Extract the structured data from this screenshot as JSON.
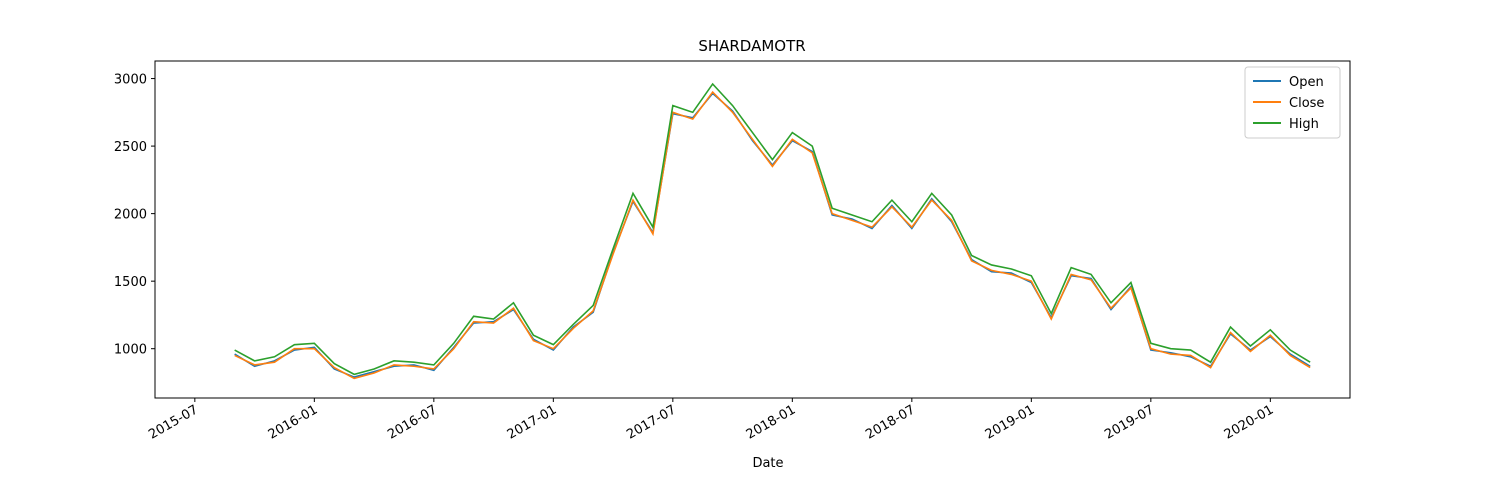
{
  "chart_data": {
    "type": "line",
    "title": "SHARDAMOTR",
    "xlabel": "Date",
    "x": [
      "2015-09",
      "2015-10",
      "2015-11",
      "2015-12",
      "2016-01",
      "2016-02",
      "2016-03",
      "2016-04",
      "2016-05",
      "2016-06",
      "2016-07",
      "2016-08",
      "2016-09",
      "2016-10",
      "2016-11",
      "2016-12",
      "2017-01",
      "2017-02",
      "2017-03",
      "2017-04",
      "2017-05",
      "2017-06",
      "2017-07",
      "2017-08",
      "2017-09",
      "2017-10",
      "2017-11",
      "2017-12",
      "2018-01",
      "2018-02",
      "2018-03",
      "2018-04",
      "2018-05",
      "2018-06",
      "2018-07",
      "2018-08",
      "2018-09",
      "2018-10",
      "2018-11",
      "2018-12",
      "2019-01",
      "2019-02",
      "2019-03",
      "2019-04",
      "2019-05",
      "2019-06",
      "2019-07",
      "2019-08",
      "2019-09",
      "2019-10",
      "2019-11",
      "2019-12",
      "2020-01",
      "2020-02",
      "2020-03"
    ],
    "series": [
      {
        "name": "Open",
        "color": "#1f77b4",
        "values": [
          960,
          870,
          910,
          990,
          1010,
          850,
          790,
          830,
          870,
          880,
          840,
          1010,
          1190,
          1200,
          1290,
          1070,
          990,
          1160,
          1270,
          1710,
          2090,
          1860,
          2740,
          2710,
          2890,
          2760,
          2540,
          2360,
          2540,
          2460,
          1990,
          1960,
          1890,
          2060,
          1890,
          2110,
          1940,
          1660,
          1570,
          1560,
          1490,
          1230,
          1540,
          1520,
          1290,
          1460,
          990,
          970,
          940,
          870,
          1110,
          990,
          1090,
          960,
          870
        ]
      },
      {
        "name": "Close",
        "color": "#ff7f0e",
        "values": [
          950,
          880,
          900,
          1000,
          1000,
          860,
          780,
          820,
          880,
          870,
          850,
          1000,
          1200,
          1190,
          1300,
          1060,
          1000,
          1150,
          1280,
          1700,
          2100,
          1850,
          2750,
          2700,
          2900,
          2750,
          2550,
          2350,
          2550,
          2450,
          2000,
          1950,
          1900,
          2050,
          1900,
          2100,
          1950,
          1650,
          1580,
          1550,
          1500,
          1220,
          1550,
          1510,
          1300,
          1450,
          1000,
          960,
          950,
          860,
          1120,
          980,
          1100,
          950,
          860
        ]
      },
      {
        "name": "High",
        "color": "#2ca02c",
        "values": [
          990,
          910,
          940,
          1030,
          1040,
          890,
          810,
          850,
          910,
          900,
          880,
          1040,
          1240,
          1220,
          1340,
          1100,
          1030,
          1180,
          1320,
          1740,
          2150,
          1900,
          2800,
          2750,
          2960,
          2800,
          2600,
          2400,
          2600,
          2500,
          2040,
          1990,
          1940,
          2100,
          1940,
          2150,
          1990,
          1690,
          1620,
          1590,
          1540,
          1260,
          1600,
          1550,
          1340,
          1490,
          1040,
          1000,
          990,
          900,
          1160,
          1020,
          1140,
          990,
          900
        ]
      }
    ],
    "xlim": [
      "2015-05",
      "2020-05"
    ],
    "xticks": [
      "2015-07",
      "2016-01",
      "2016-07",
      "2017-01",
      "2017-07",
      "2018-01",
      "2018-07",
      "2019-01",
      "2019-07",
      "2020-01"
    ],
    "ylim": [
      635,
      3130
    ],
    "yticks": [
      1000,
      1500,
      2000,
      2500,
      3000
    ],
    "legend": "upper right"
  }
}
